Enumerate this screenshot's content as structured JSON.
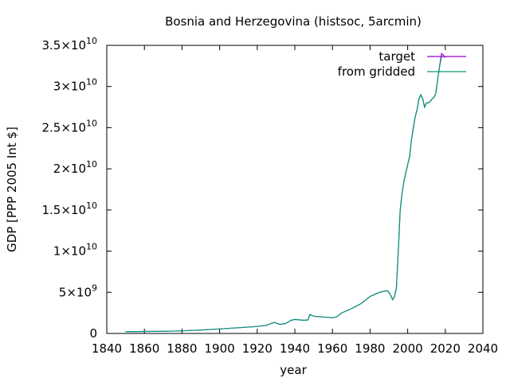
{
  "chart_data": {
    "type": "line",
    "title": "Bosnia and Herzegovina (histsoc, 5arcmin)",
    "xlabel": "year",
    "ylabel": "GDP [PPP 2005 Int $]",
    "xlim": [
      1840,
      2040
    ],
    "ylim": [
      0,
      35000000000
    ],
    "grid": false,
    "legend_position": "top-right",
    "x_ticks": [
      1840,
      1860,
      1880,
      1900,
      1920,
      1940,
      1960,
      1980,
      2000,
      2020,
      2040
    ],
    "y_ticks": [
      {
        "value": 0,
        "mantissa": "0",
        "exp": ""
      },
      {
        "value": 5000000000,
        "mantissa": "5×10",
        "exp": "9"
      },
      {
        "value": 10000000000,
        "mantissa": "1×10",
        "exp": "10"
      },
      {
        "value": 15000000000,
        "mantissa": "1.5×10",
        "exp": "10"
      },
      {
        "value": 20000000000,
        "mantissa": "2×10",
        "exp": "10"
      },
      {
        "value": 25000000000,
        "mantissa": "2.5×10",
        "exp": "10"
      },
      {
        "value": 30000000000,
        "mantissa": "3×10",
        "exp": "10"
      },
      {
        "value": 35000000000,
        "mantissa": "3.5×10",
        "exp": "10"
      }
    ],
    "series": [
      {
        "name": "target",
        "color": "#9400d3",
        "x": [
          1850,
          1860,
          1870,
          1880,
          1890,
          1900,
          1910,
          1920,
          1925,
          1929,
          1932,
          1935,
          1938,
          1940,
          1945,
          1947,
          1948,
          1950,
          1955,
          1960,
          1962,
          1965,
          1970,
          1975,
          1980,
          1985,
          1989,
          1990,
          1991,
          1992,
          1993,
          1994,
          1995,
          1996,
          1997,
          1998,
          1999,
          2000,
          2001,
          2002,
          2003,
          2004,
          2005,
          2006,
          2007,
          2008,
          2009,
          2010,
          2011,
          2012,
          2013,
          2014,
          2015,
          2016,
          2017,
          2018,
          2019,
          2020
        ],
        "y": [
          200000000,
          240000000,
          260000000,
          320000000,
          420000000,
          550000000,
          700000000,
          850000000,
          1000000000,
          1350000000,
          1100000000,
          1200000000,
          1600000000,
          1700000000,
          1600000000,
          1650000000,
          2300000000,
          2100000000,
          2000000000,
          1900000000,
          2000000000,
          2500000000,
          3000000000,
          3600000000,
          4500000000,
          5000000000,
          5200000000,
          5000000000,
          4600000000,
          4100000000,
          4500000000,
          5500000000,
          10000000000,
          15000000000,
          17000000000,
          18500000000,
          19500000000,
          20500000000,
          21500000000,
          23500000000,
          25000000000,
          26300000000,
          27200000000,
          28500000000,
          29000000000,
          28500000000,
          27500000000,
          28000000000,
          28000000000,
          28200000000,
          28500000000,
          28700000000,
          29200000000,
          31000000000,
          32500000000,
          34000000000,
          33800000000,
          33500000000
        ]
      },
      {
        "name": "from gridded",
        "color": "#009e73",
        "x": [
          1850,
          1860,
          1870,
          1880,
          1890,
          1900,
          1910,
          1920,
          1925,
          1929,
          1932,
          1935,
          1938,
          1940,
          1945,
          1947,
          1948,
          1950,
          1955,
          1960,
          1962,
          1965,
          1970,
          1975,
          1980,
          1985,
          1989,
          1990,
          1991,
          1992,
          1993,
          1994,
          1995,
          1996,
          1997,
          1998,
          1999,
          2000,
          2001,
          2002,
          2003,
          2004,
          2005,
          2006,
          2007,
          2008,
          2009,
          2010,
          2011,
          2012,
          2013,
          2014,
          2015,
          2016,
          2017,
          2018
        ],
        "y": [
          200000000,
          240000000,
          260000000,
          320000000,
          420000000,
          550000000,
          700000000,
          850000000,
          1000000000,
          1350000000,
          1100000000,
          1200000000,
          1600000000,
          1700000000,
          1600000000,
          1650000000,
          2300000000,
          2100000000,
          2000000000,
          1900000000,
          2000000000,
          2500000000,
          3000000000,
          3600000000,
          4500000000,
          5000000000,
          5200000000,
          5000000000,
          4600000000,
          4100000000,
          4500000000,
          5500000000,
          10000000000,
          15000000000,
          17000000000,
          18500000000,
          19500000000,
          20500000000,
          21500000000,
          23500000000,
          25000000000,
          26300000000,
          27200000000,
          28500000000,
          29000000000,
          28500000000,
          27500000000,
          28000000000,
          28000000000,
          28200000000,
          28500000000,
          28700000000,
          29200000000,
          31000000000,
          32500000000,
          33600000000
        ]
      }
    ]
  }
}
